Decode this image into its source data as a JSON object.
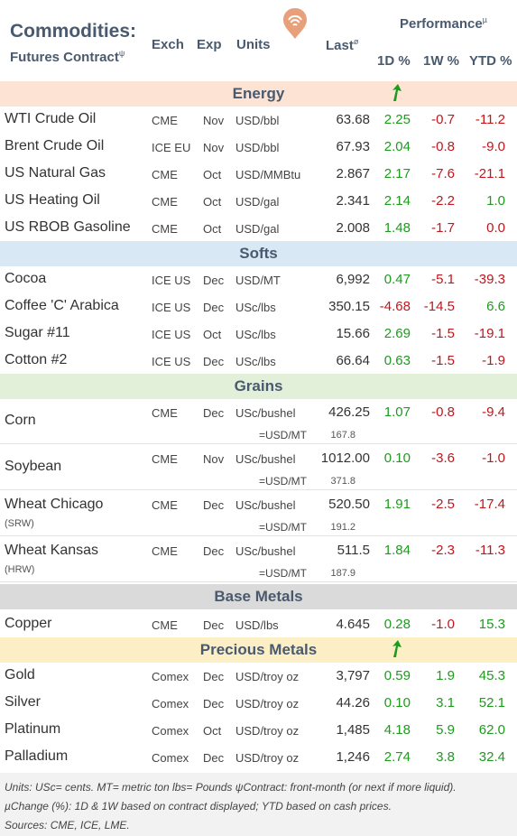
{
  "header": {
    "title1": "Commodities:",
    "title2": "Futures Contract",
    "title2_sup": "ψ",
    "col_exch": "Exch",
    "col_exp": "Exp",
    "col_units": "Units",
    "col_last": "Last",
    "col_last_sup": "ø",
    "performance": "Performance",
    "performance_sup": "µ",
    "col_1d": "1D %",
    "col_1w": "1W %",
    "col_ytd": "YTD %",
    "logo_icon": "wifi-pin-logo-icon",
    "logo_color": "#e8a07a"
  },
  "sections": {
    "energy": "Energy",
    "softs": "Softs",
    "grains": "Grains",
    "base": "Base Metals",
    "precious": "Precious Metals"
  },
  "rows": {
    "wti": {
      "name": "WTI Crude Oil",
      "exch": "CME",
      "exp": "Nov",
      "units": "USD/bbl",
      "last": "63.68",
      "d1": "2.25",
      "w1": "-0.7",
      "ytd": "-11.2"
    },
    "brent": {
      "name": "Brent Crude Oil",
      "exch": "ICE EU",
      "exp": "Nov",
      "units": "USD/bbl",
      "last": "67.93",
      "d1": "2.04",
      "w1": "-0.8",
      "ytd": "-9.0"
    },
    "natgas": {
      "name": "US Natural Gas",
      "exch": "CME",
      "exp": "Oct",
      "units": "USD/MMBtu",
      "last": "2.867",
      "d1": "2.17",
      "w1": "-7.6",
      "ytd": "-21.1"
    },
    "heating": {
      "name": "US Heating Oil",
      "exch": "CME",
      "exp": "Oct",
      "units": "USD/gal",
      "last": "2.341",
      "d1": "2.14",
      "w1": "-2.2",
      "ytd": "1.0"
    },
    "rbob": {
      "name": "US RBOB Gasoline",
      "exch": "CME",
      "exp": "Oct",
      "units": "USD/gal",
      "last": "2.008",
      "d1": "1.48",
      "w1": "-1.7",
      "ytd": "0.0"
    },
    "cocoa": {
      "name": "Cocoa",
      "exch": "ICE US",
      "exp": "Dec",
      "units": "USD/MT",
      "last": "6,992",
      "d1": "0.47",
      "w1": "-5.1",
      "ytd": "-39.3"
    },
    "coffee": {
      "name": "Coffee 'C' Arabica",
      "exch": "ICE US",
      "exp": "Dec",
      "units": "USc/lbs",
      "last": "350.15",
      "d1": "-4.68",
      "w1": "-14.5",
      "ytd": "6.6"
    },
    "sugar": {
      "name": "Sugar #11",
      "exch": "ICE US",
      "exp": "Oct",
      "units": "USc/lbs",
      "last": "15.66",
      "d1": "2.69",
      "w1": "-1.5",
      "ytd": "-19.1"
    },
    "cotton": {
      "name": "Cotton #2",
      "exch": "ICE US",
      "exp": "Dec",
      "units": "USc/lbs",
      "last": "66.64",
      "d1": "0.63",
      "w1": "-1.5",
      "ytd": "-1.9"
    },
    "corn": {
      "name": "Corn",
      "exch": "CME",
      "exp": "Dec",
      "units": "USc/bushel",
      "last": "426.25",
      "d1": "1.07",
      "w1": "-0.8",
      "ytd": "-9.4",
      "conv_label": "=USD/MT",
      "conv_value": "167.8"
    },
    "soybean": {
      "name": "Soybean",
      "exch": "CME",
      "exp": "Nov",
      "units": "USc/bushel",
      "last": "1012.00",
      "d1": "0.10",
      "w1": "-3.6",
      "ytd": "-1.0",
      "conv_label": "=USD/MT",
      "conv_value": "371.8"
    },
    "wheatc": {
      "name": "Wheat Chicago",
      "sub": "(SRW)",
      "exch": "CME",
      "exp": "Dec",
      "units": "USc/bushel",
      "last": "520.50",
      "d1": "1.91",
      "w1": "-2.5",
      "ytd": "-17.4",
      "conv_label": "=USD/MT",
      "conv_value": "191.2"
    },
    "wheatk": {
      "name": "Wheat Kansas",
      "sub": "(HRW)",
      "exch": "CME",
      "exp": "Dec",
      "units": "USc/bushel",
      "last": "511.5",
      "d1": "1.84",
      "w1": "-2.3",
      "ytd": "-11.3",
      "conv_label": "=USD/MT",
      "conv_value": "187.9"
    },
    "copper": {
      "name": "Copper",
      "exch": "CME",
      "exp": "Dec",
      "units": "USD/lbs",
      "last": "4.645",
      "d1": "0.28",
      "w1": "-1.0",
      "ytd": "15.3"
    },
    "gold": {
      "name": "Gold",
      "exch": "Comex",
      "exp": "Dec",
      "units": "USD/troy oz",
      "last": "3,797",
      "d1": "0.59",
      "w1": "1.9",
      "ytd": "45.3"
    },
    "silver": {
      "name": "Silver",
      "exch": "Comex",
      "exp": "Dec",
      "units": "USD/troy oz",
      "last": "44.26",
      "d1": "0.10",
      "w1": "3.1",
      "ytd": "52.1"
    },
    "platinum": {
      "name": "Platinum",
      "exch": "Comex",
      "exp": "Oct",
      "units": "USD/troy oz",
      "last": "1,485",
      "d1": "4.18",
      "w1": "5.9",
      "ytd": "62.0"
    },
    "palladium": {
      "name": "Palladium",
      "exch": "Comex",
      "exp": "Dec",
      "units": "USD/troy oz",
      "last": "1,246",
      "d1": "2.74",
      "w1": "3.8",
      "ytd": "32.4"
    }
  },
  "icons": {
    "best_performer": "green-up-arrow-icon"
  },
  "colors": {
    "positive": "#1e9a1e",
    "negative": "#c0161c"
  },
  "footer": {
    "line1": "Units: USc= cents.   MT= metric ton    lbs= Pounds   ψContract: front-month (or next if more liquid).",
    "line2": "µChange (%): 1D & 1W based on contract displayed; YTD based on cash prices.",
    "line3": "Sources: CME, ICE, LME."
  }
}
